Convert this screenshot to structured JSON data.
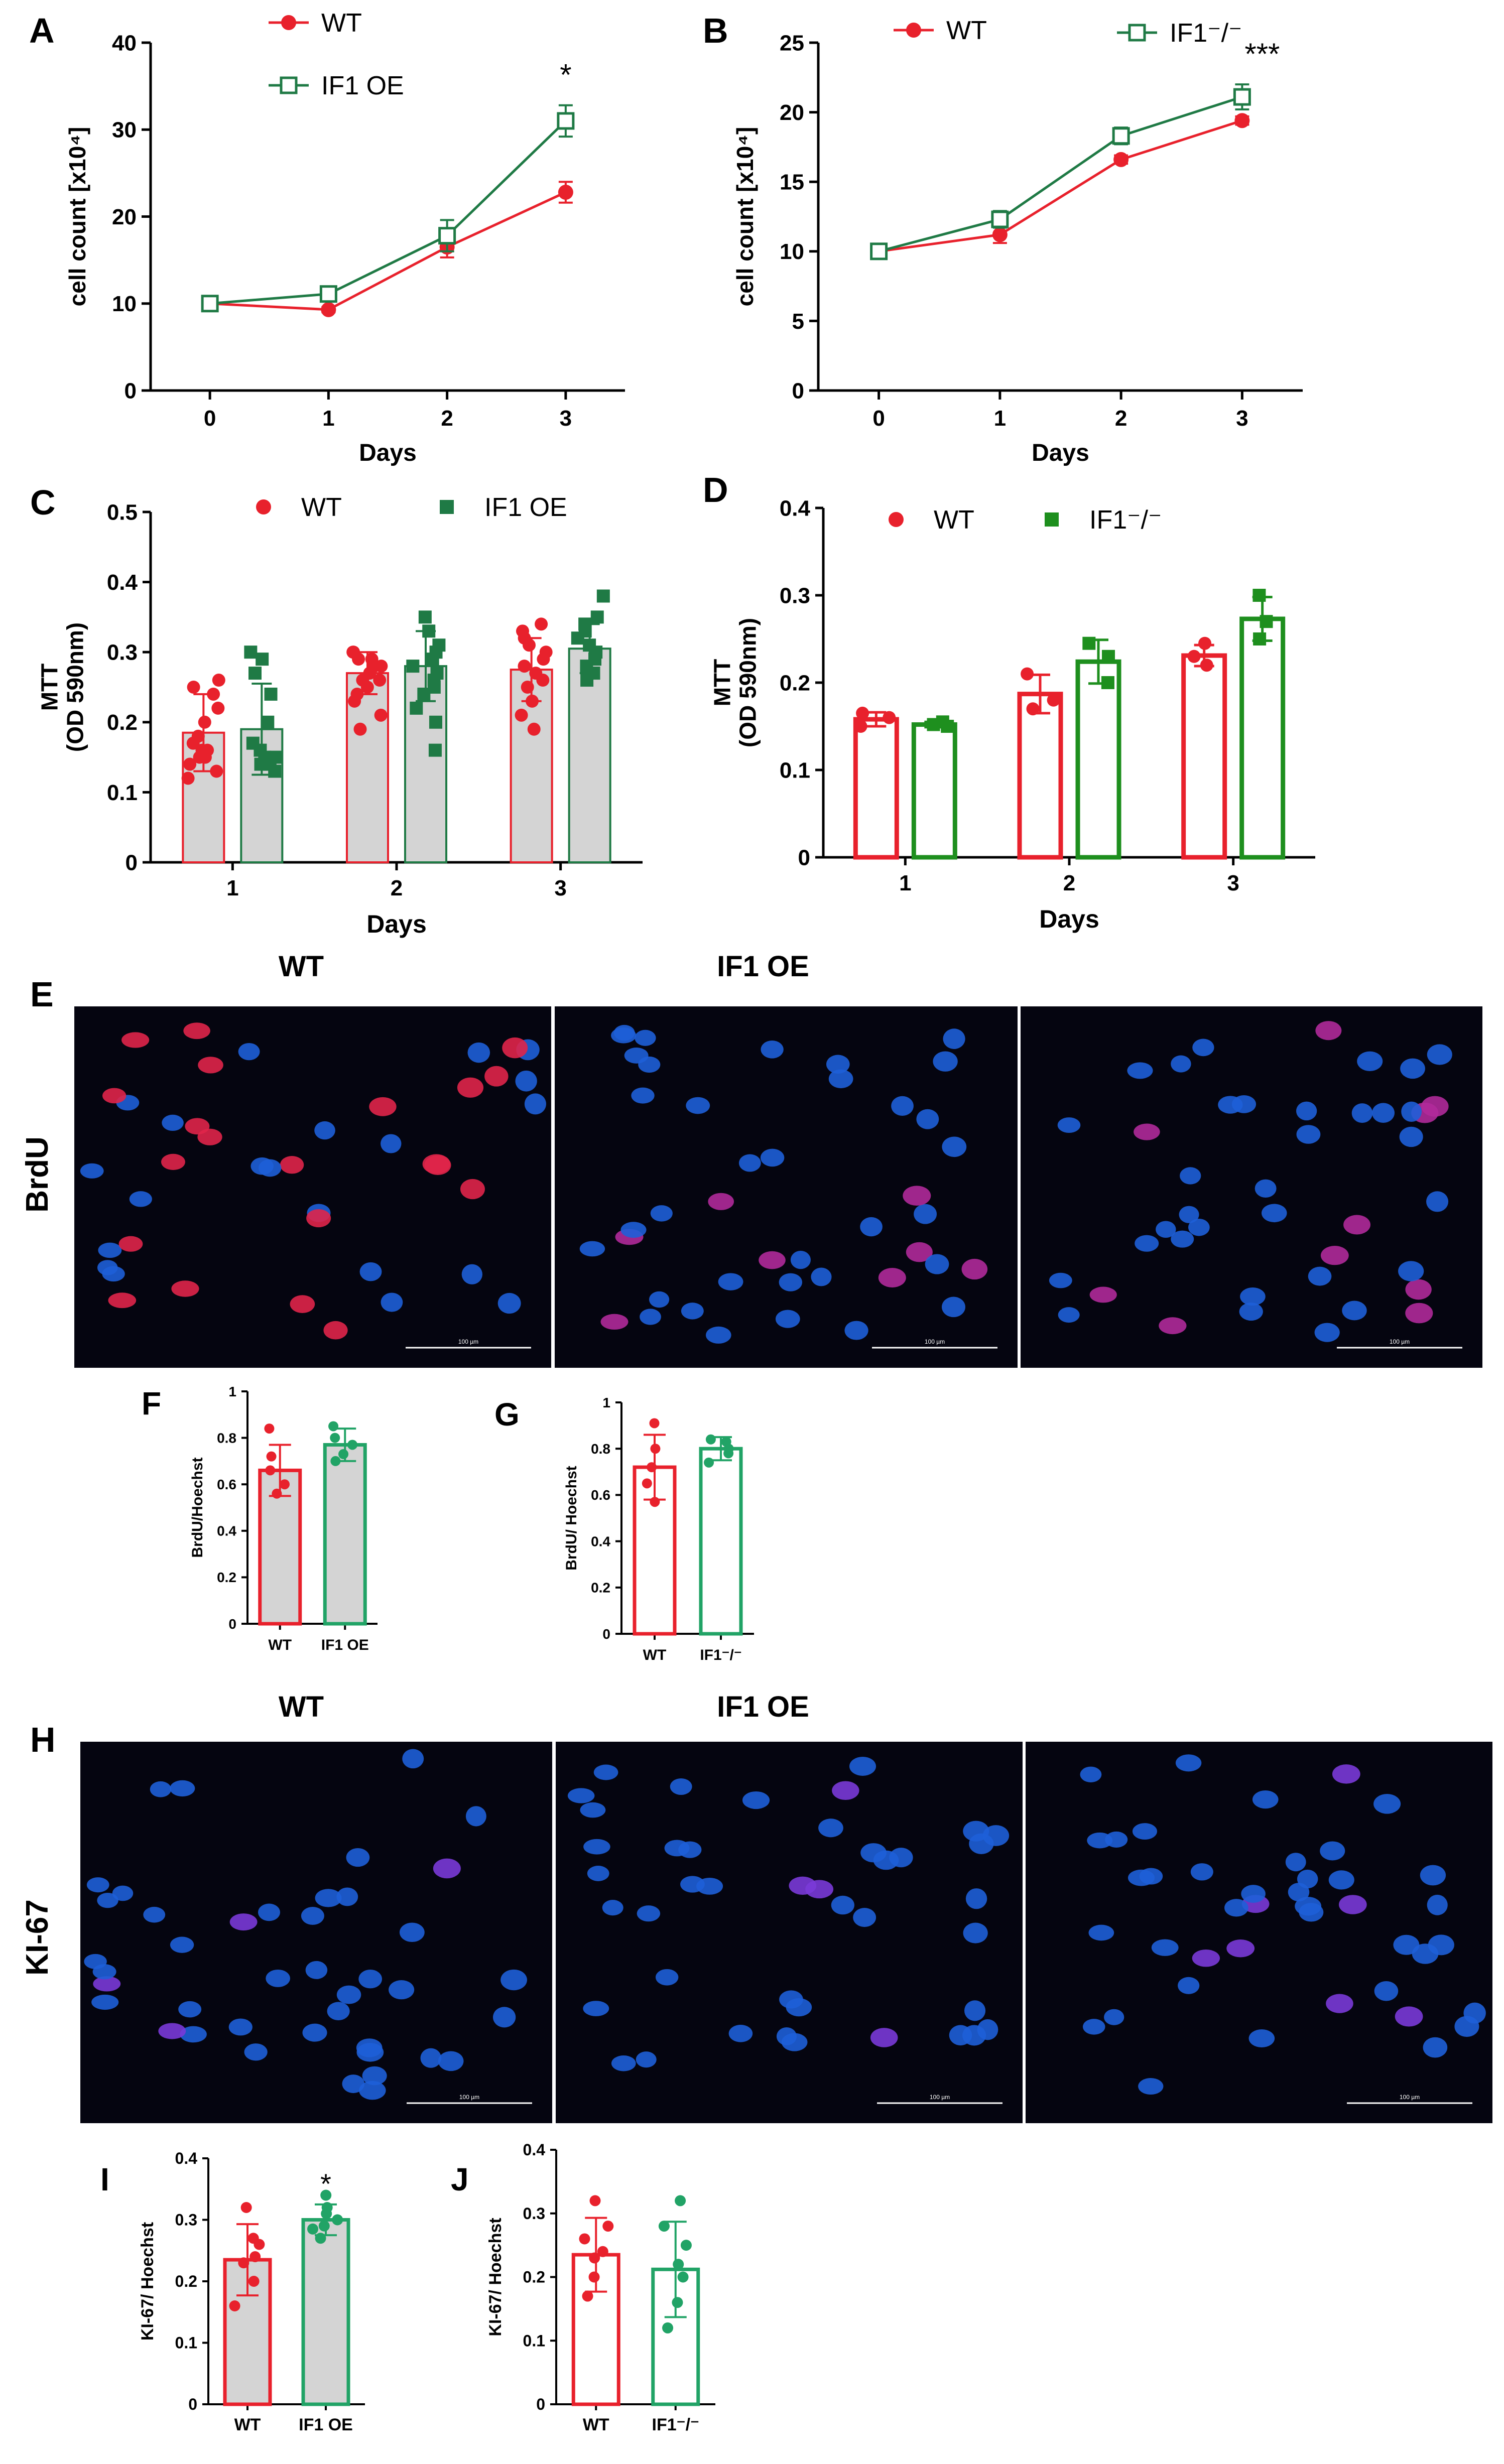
{
  "colors": {
    "wt": "#e8212c",
    "oe": "#1f7a45",
    "green2": "#21a366",
    "green3": "#1e8f1e",
    "gray": "#d4d4d4",
    "black": "#000000",
    "micro_bg": "#050510"
  },
  "panel_letters": {
    "A": "A",
    "B": "B",
    "C": "C",
    "D": "D",
    "E": "E",
    "F": "F",
    "G": "G",
    "H": "H",
    "I": "I",
    "J": "J"
  },
  "micro": {
    "E": {
      "row_label": "BrdU",
      "col_wt": "WT",
      "col_oe": "IF1 OE",
      "scale": [
        "100 µm",
        "100 µm",
        "100 µm"
      ]
    },
    "H": {
      "row_label": "KI-67",
      "col_wt": "WT",
      "col_oe": "IF1 OE",
      "scale": [
        "100 µm",
        "100 µm",
        "100 µm"
      ]
    }
  },
  "chart_data": [
    {
      "id": "A",
      "type": "line",
      "xlabel": "Days",
      "ylabel": "cell count [x10⁴]",
      "ylim": [
        0,
        40
      ],
      "yticks": [
        0,
        10,
        20,
        30,
        40
      ],
      "x": [
        0,
        1,
        2,
        3
      ],
      "series": [
        {
          "name": "WT",
          "marker": "circle-filled",
          "values": [
            10,
            9.3,
            16.5,
            22.8
          ],
          "err": [
            0.3,
            0.3,
            1.2,
            1.2
          ]
        },
        {
          "name": "IF1 OE",
          "marker": "square-open",
          "values": [
            10,
            11.1,
            17.8,
            31
          ],
          "err": [
            0.3,
            0.4,
            1.8,
            1.8
          ]
        }
      ],
      "annotations": [
        {
          "x": 3,
          "text": "*"
        }
      ]
    },
    {
      "id": "B",
      "type": "line",
      "xlabel": "Days",
      "ylabel": "cell count [x10⁴]",
      "ylim": [
        0,
        25
      ],
      "yticks": [
        0,
        5,
        10,
        15,
        20,
        25
      ],
      "x": [
        0,
        1,
        2,
        3
      ],
      "series": [
        {
          "name": "WT",
          "marker": "circle-filled",
          "values": [
            10,
            11.2,
            16.6,
            19.4
          ],
          "err": [
            0.2,
            0.6,
            0.3,
            0.3
          ]
        },
        {
          "name": "IF1⁻/⁻",
          "marker": "square-open",
          "values": [
            10,
            12.3,
            18.3,
            21.1
          ],
          "err": [
            0.2,
            0.6,
            0.6,
            0.9
          ]
        }
      ],
      "annotations": [
        {
          "x": 3,
          "text": "***"
        }
      ]
    },
    {
      "id": "C",
      "type": "bar",
      "xlabel": "Days",
      "ylabel": "MTT (OD 590nm)",
      "ylim": [
        0,
        0.5
      ],
      "yticks": [
        0,
        0.1,
        0.2,
        0.3,
        0.4,
        0.5
      ],
      "categories": [
        "1",
        "2",
        "3"
      ],
      "series": [
        {
          "name": "WT",
          "values": [
            0.185,
            0.27,
            0.275
          ],
          "err": [
            0.055,
            0.03,
            0.045
          ],
          "points": [
            [
              0.12,
              0.13,
              0.14,
              0.15,
              0.15,
              0.16,
              0.16,
              0.17,
              0.18,
              0.2,
              0.22,
              0.24,
              0.25,
              0.26
            ],
            [
              0.19,
              0.21,
              0.23,
              0.24,
              0.25,
              0.26,
              0.26,
              0.27,
              0.28,
              0.28,
              0.29,
              0.29,
              0.3,
              0.3
            ],
            [
              0.19,
              0.21,
              0.23,
              0.25,
              0.26,
              0.27,
              0.28,
              0.29,
              0.3,
              0.31,
              0.32,
              0.33,
              0.34
            ]
          ]
        },
        {
          "name": "IF1 OE",
          "values": [
            0.19,
            0.28,
            0.305
          ],
          "err": [
            0.065,
            0.05,
            0.035
          ],
          "points": [
            [
              0.13,
              0.14,
              0.14,
              0.15,
              0.15,
              0.16,
              0.17,
              0.2,
              0.24,
              0.27,
              0.29,
              0.3
            ],
            [
              0.16,
              0.2,
              0.22,
              0.24,
              0.25,
              0.26,
              0.27,
              0.28,
              0.29,
              0.3,
              0.31,
              0.33,
              0.35
            ],
            [
              0.26,
              0.27,
              0.28,
              0.29,
              0.3,
              0.31,
              0.32,
              0.33,
              0.34,
              0.35,
              0.38
            ]
          ]
        }
      ]
    },
    {
      "id": "D",
      "type": "bar",
      "xlabel": "Days",
      "ylabel": "MTT (OD 590nm)",
      "ylim": [
        0,
        0.4
      ],
      "yticks": [
        0,
        0.1,
        0.2,
        0.3,
        0.4
      ],
      "categories": [
        "1",
        "2",
        "3"
      ],
      "series": [
        {
          "name": "WT",
          "values": [
            0.158,
            0.187,
            0.231
          ],
          "err": [
            0.008,
            0.022,
            0.012
          ],
          "points": [
            [
              0.15,
              0.16,
              0.165
            ],
            [
              0.17,
              0.18,
              0.21
            ],
            [
              0.22,
              0.23,
              0.245
            ]
          ]
        },
        {
          "name": "IF1⁻/⁻",
          "values": [
            0.152,
            0.224,
            0.273
          ],
          "err": [
            0.003,
            0.025,
            0.025
          ],
          "points": [
            [
              0.15,
              0.152,
              0.155
            ],
            [
              0.2,
              0.23,
              0.245
            ],
            [
              0.25,
              0.27,
              0.3
            ]
          ]
        }
      ]
    },
    {
      "id": "F",
      "type": "bar",
      "ylabel": "BrdU/Hoechst",
      "ylim": [
        0,
        1.0
      ],
      "yticks": [
        0,
        0.2,
        0.4,
        0.6,
        0.8,
        1.0
      ],
      "categories": [
        "WT",
        "IF1 OE"
      ],
      "values": [
        0.66,
        0.77
      ],
      "err": [
        0.11,
        0.07
      ],
      "points": [
        [
          0.56,
          0.6,
          0.66,
          0.72,
          0.84
        ],
        [
          0.7,
          0.73,
          0.77,
          0.8,
          0.85
        ]
      ]
    },
    {
      "id": "G",
      "type": "bar",
      "ylabel": "BrdU/ Hoechst",
      "ylim": [
        0,
        1.0
      ],
      "yticks": [
        0,
        0.2,
        0.4,
        0.6,
        0.8,
        1.0
      ],
      "categories": [
        "WT",
        "IF1⁻/⁻"
      ],
      "values": [
        0.72,
        0.8
      ],
      "err": [
        0.14,
        0.05
      ],
      "points": [
        [
          0.57,
          0.65,
          0.72,
          0.8,
          0.91
        ],
        [
          0.74,
          0.78,
          0.8,
          0.83,
          0.84
        ]
      ]
    },
    {
      "id": "I",
      "type": "bar",
      "ylabel": "KI-67/ Hoechst",
      "ylim": [
        0,
        0.4
      ],
      "yticks": [
        0,
        0.1,
        0.2,
        0.3,
        0.4
      ],
      "categories": [
        "WT",
        "IF1 OE"
      ],
      "values": [
        0.235,
        0.3
      ],
      "err": [
        0.058,
        0.025
      ],
      "points": [
        [
          0.16,
          0.2,
          0.23,
          0.24,
          0.26,
          0.27,
          0.32
        ],
        [
          0.27,
          0.285,
          0.29,
          0.3,
          0.31,
          0.32,
          0.34
        ]
      ],
      "annotations": [
        {
          "category": "IF1 OE",
          "text": "*"
        }
      ]
    },
    {
      "id": "J",
      "type": "bar",
      "ylabel": "KI-67/ Hoechst",
      "ylim": [
        0,
        0.4
      ],
      "yticks": [
        0,
        0.1,
        0.2,
        0.3,
        0.4
      ],
      "categories": [
        "WT",
        "IF1⁻/⁻"
      ],
      "values": [
        0.235,
        0.212
      ],
      "err": [
        0.058,
        0.075
      ],
      "points": [
        [
          0.17,
          0.2,
          0.23,
          0.24,
          0.26,
          0.28,
          0.32
        ],
        [
          0.12,
          0.16,
          0.2,
          0.22,
          0.25,
          0.28,
          0.32
        ]
      ]
    }
  ]
}
